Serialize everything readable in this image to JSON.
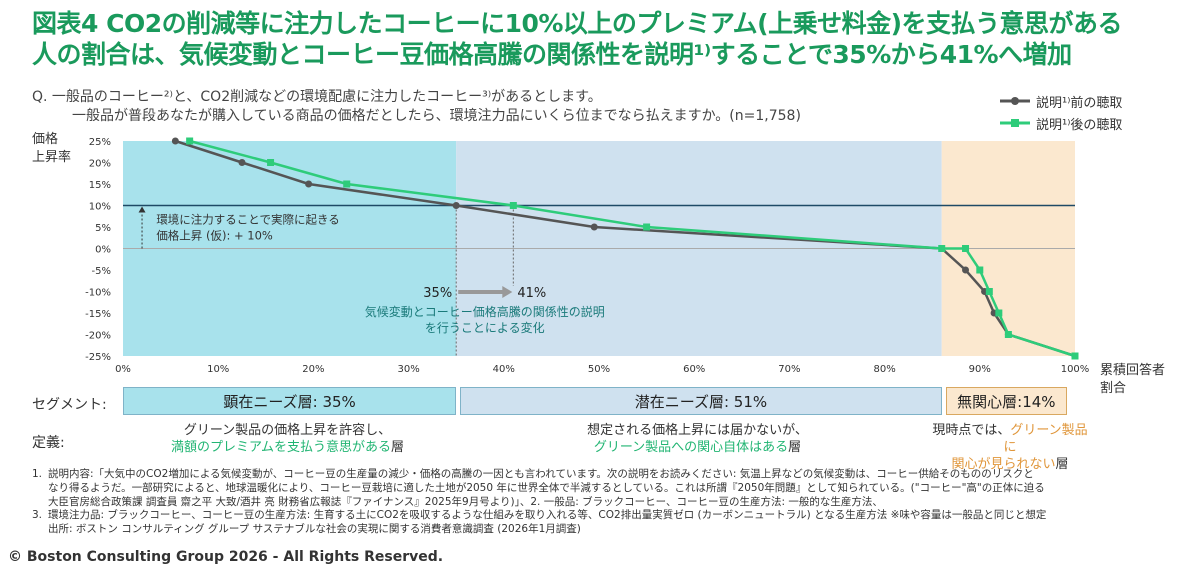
{
  "title_line1": "図表4 CO2の削減等に注力したコーヒーに10%以上のプレミアム(上乗せ料金)を支払う意思がある",
  "title_line2": "人の割合は、気候変動とコーヒー豆価格高騰の関係性を説明¹⁾することで35%から41%へ増加",
  "question_line1": "Q. 一般品のコーヒー²⁾と、CO2削減などの環境配慮に注力したコーヒー³⁾があるとします。",
  "question_line2": "一般品が普段あなたが購入している商品の価格だとしたら、環境注力品にいくら位までなら払えますか。(n=1,758)",
  "legend": {
    "before": "説明¹⁾前の聴取",
    "after": "説明¹⁾後の聴取"
  },
  "colors": {
    "before": "#555555",
    "after": "#2ecc7a",
    "seg_cyan": "#a8e2ec",
    "seg_blue": "#cfe1ef",
    "seg_orange": "#fbe8cf"
  },
  "chart_data": {
    "type": "line",
    "ylabel": "価格\n上昇率",
    "xlabel": "累積回答者\n割合",
    "xlim": [
      0,
      100
    ],
    "ylim": [
      -25,
      25
    ],
    "x_ticks": [
      "0%",
      "10%",
      "20%",
      "30%",
      "40%",
      "50%",
      "60%",
      "70%",
      "80%",
      "90%",
      "100%"
    ],
    "y_ticks": [
      "25%",
      "20%",
      "15%",
      "10%",
      "5%",
      "0%",
      "-5%",
      "-10%",
      "-15%",
      "-20%",
      "-25%"
    ],
    "series": [
      {
        "name": "説明¹⁾前の聴取",
        "x": [
          5.5,
          12.5,
          19.5,
          35,
          49.5,
          86,
          88.5,
          90.5,
          91.5,
          93,
          100
        ],
        "y": [
          25,
          20,
          15,
          10,
          5,
          0,
          -5,
          -10,
          -15,
          -20,
          -25
        ]
      },
      {
        "name": "説明¹⁾後の聴取",
        "x": [
          7,
          15.5,
          23.5,
          41,
          55,
          86,
          88.5,
          90,
          91,
          92,
          93,
          100
        ],
        "y": [
          25,
          20,
          15,
          10,
          5,
          0,
          0,
          -5,
          -10,
          -15,
          -20,
          -25
        ]
      }
    ],
    "annotations": {
      "ref_text1": "環境に注力することで実際に起きる",
      "ref_text2": "価格上昇 (仮): + 10%",
      "from_label": "35%",
      "to_label": "41%",
      "change_text1": "気候変動とコーヒー価格高騰の関係性の説明",
      "change_text2": "を行うことによる変化"
    }
  },
  "segments": {
    "label": "セグメント:",
    "items": [
      {
        "label": "顕在ニーズ層: 35%"
      },
      {
        "label": "潜在ニーズ層: 51%"
      },
      {
        "label": "無関心層:14%"
      }
    ]
  },
  "definitions": {
    "label": "定義:",
    "d1a": "グリーン製品の価格上昇を許容し、",
    "d1b": "満額のプレミアムを支払う意思がある",
    "d1c": "層",
    "d2a": "想定される価格上昇には届かないが、",
    "d2b": "グリーン製品への関心自体はある",
    "d2c": "層",
    "d3a": "現時点では、",
    "d3b": "グリーン製品に",
    "d3c": "関心が見られない",
    "d3d": "層"
  },
  "notes": [
    {
      "num": "1.",
      "text": "説明内容:「大気中のCO2増加による気候変動が、コーヒー豆の生産量の減少・価格の高騰の一因とも言われています。次の説明をお読みください: 気温上昇などの気候変動は、コーヒー供給そのもののリスクと"
    },
    {
      "num": "",
      "text": "なり得るようだ。一部研究によると、地球温暖化により、コーヒー豆栽培に適した土地が2050 年に世界全体で半減するとしている。これは所謂『2050年問題』として知られている。(\"コーヒー\"高\"の正体に迫る"
    },
    {
      "num": "",
      "text": "大臣官房総合政策課 調査員 齋之平 大致/酒井 亮 財務省広報誌『ファイナンス』2025年9月号より)」、2. 一般品: ブラックコーヒー、コーヒー豆の生産方法: 一般的な生産方法、"
    },
    {
      "num": "3.",
      "text": "環境注力品: ブラックコーヒー、コーヒー豆の生産方法: 生育する土にCO2を吸収するような仕組みを取り入れる等、CO2排出量実質ゼロ (カーボンニュートラル) となる生産方法 ※味や容量は一般品と同じと想定"
    },
    {
      "num": "",
      "text": "出所: ボストン コンサルティング グループ サステナブルな社会の実現に関する消費者意識調査 (2026年1月調査)"
    }
  ],
  "copyright": "© Boston Consulting Group 2026 - All Rights Reserved."
}
